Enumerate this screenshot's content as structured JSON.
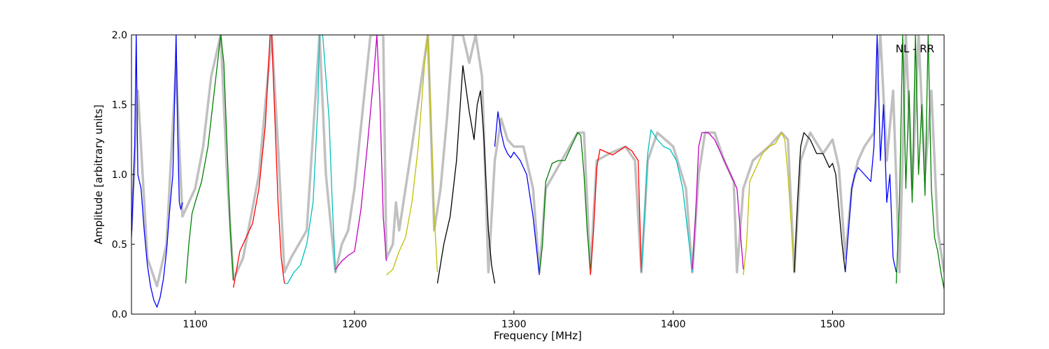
{
  "chart_data": {
    "type": "line",
    "title": "",
    "xlabel": "Frequency [MHz]",
    "ylabel": "Amplitude [arbitrary units]",
    "xlim": [
      1060,
      1570
    ],
    "ylim": [
      0,
      2.0
    ],
    "xticks": [
      1100,
      1200,
      1300,
      1400,
      1500
    ],
    "yticks": [
      0.0,
      0.5,
      1.0,
      1.5,
      2.0
    ],
    "xtick_labels": [
      "1100",
      "1200",
      "1300",
      "1400",
      "1500"
    ],
    "ytick_labels": [
      "0.0",
      "0.5",
      "1.0",
      "1.5",
      "2.0"
    ],
    "annotation": "NL - RR",
    "annotation_position": "top-right",
    "grid": false,
    "background_series": {
      "color": "#c0c0c0",
      "x": [
        1060,
        1064,
        1070,
        1076,
        1082,
        1088,
        1090,
        1092,
        1100,
        1105,
        1110,
        1116,
        1120,
        1124,
        1130,
        1140,
        1148,
        1152,
        1156,
        1160,
        1170,
        1178,
        1182,
        1188,
        1192,
        1196,
        1200,
        1210,
        1218,
        1220,
        1224,
        1226,
        1228,
        1236,
        1246,
        1250,
        1254,
        1258,
        1262,
        1268,
        1272,
        1276,
        1280,
        1284,
        1288,
        1292,
        1296,
        1300,
        1306,
        1312,
        1316,
        1320,
        1330,
        1340,
        1344,
        1348,
        1352,
        1360,
        1370,
        1376,
        1380,
        1384,
        1390,
        1400,
        1408,
        1412,
        1416,
        1420,
        1426,
        1432,
        1438,
        1440,
        1444,
        1450,
        1460,
        1468,
        1472,
        1476,
        1480,
        1486,
        1494,
        1500,
        1504,
        1508,
        1512,
        1516,
        1520,
        1526,
        1530,
        1534,
        1538,
        1542,
        1546,
        1550,
        1554,
        1558,
        1562,
        1566,
        1570
      ],
      "y": [
        0.6,
        1.6,
        0.4,
        0.2,
        0.5,
        1.8,
        1.2,
        0.7,
        0.9,
        1.2,
        1.7,
        2.0,
        1.0,
        0.25,
        0.4,
        1.0,
        2.0,
        1.2,
        0.3,
        0.4,
        0.6,
        2.0,
        1.0,
        0.3,
        0.5,
        0.6,
        0.9,
        2.0,
        2.0,
        0.4,
        0.5,
        0.8,
        0.6,
        1.2,
        2.0,
        0.6,
        0.9,
        1.4,
        2.0,
        2.0,
        1.8,
        2.0,
        1.7,
        0.3,
        1.1,
        1.4,
        1.25,
        1.2,
        1.2,
        0.9,
        0.3,
        0.9,
        1.1,
        1.3,
        1.3,
        0.3,
        1.1,
        1.15,
        1.2,
        1.1,
        0.3,
        1.1,
        1.3,
        1.2,
        0.9,
        0.3,
        1.0,
        1.3,
        1.3,
        1.1,
        0.95,
        0.3,
        0.9,
        1.1,
        1.2,
        1.3,
        1.25,
        0.3,
        1.1,
        1.3,
        1.15,
        1.25,
        1.05,
        0.4,
        0.9,
        1.1,
        1.2,
        1.3,
        2.0,
        1.1,
        1.6,
        0.3,
        2.0,
        0.9,
        2.0,
        1.0,
        1.6,
        0.6,
        0.3
      ]
    },
    "series": [
      {
        "color": "#0000ff",
        "x": [
          1060,
          1062,
          1063,
          1064,
          1066,
          1068,
          1070,
          1072,
          1074,
          1076,
          1078,
          1080,
          1082,
          1084,
          1086,
          1088,
          1089,
          1090,
          1091,
          1092
        ],
        "y": [
          0.55,
          1.2,
          2.0,
          1.0,
          0.9,
          0.6,
          0.35,
          0.2,
          0.1,
          0.05,
          0.12,
          0.25,
          0.45,
          0.75,
          1.0,
          2.0,
          1.3,
          0.8,
          0.75,
          0.8
        ]
      },
      {
        "color": "#008000",
        "x": [
          1094,
          1096,
          1098,
          1100,
          1104,
          1108,
          1112,
          1116,
          1118,
          1120,
          1122,
          1124
        ],
        "y": [
          0.22,
          0.5,
          0.72,
          0.8,
          0.95,
          1.2,
          1.6,
          2.0,
          1.8,
          1.2,
          0.6,
          0.24
        ]
      },
      {
        "color": "#ff0000",
        "x": [
          1124,
          1128,
          1132,
          1136,
          1140,
          1144,
          1147,
          1148,
          1150,
          1152,
          1154,
          1156
        ],
        "y": [
          0.19,
          0.45,
          0.55,
          0.65,
          0.9,
          1.35,
          2.0,
          2.0,
          1.4,
          0.8,
          0.4,
          0.22
        ]
      },
      {
        "color": "#00bfbf",
        "x": [
          1156,
          1158,
          1162,
          1166,
          1170,
          1174,
          1177,
          1178,
          1180,
          1184,
          1186,
          1188
        ],
        "y": [
          0.22,
          0.22,
          0.3,
          0.35,
          0.5,
          0.8,
          1.5,
          2.0,
          2.0,
          1.4,
          0.8,
          0.3
        ]
      },
      {
        "color": "#bf00bf",
        "x": [
          1188,
          1192,
          1196,
          1200,
          1204,
          1208,
          1212,
          1214,
          1216,
          1218,
          1220
        ],
        "y": [
          0.32,
          0.38,
          0.42,
          0.45,
          0.75,
          1.2,
          1.7,
          2.0,
          1.5,
          0.7,
          0.38
        ]
      },
      {
        "color": "#bfbf00",
        "x": [
          1220,
          1224,
          1228,
          1232,
          1236,
          1240,
          1244,
          1246,
          1248,
          1250,
          1252
        ],
        "y": [
          0.28,
          0.32,
          0.45,
          0.55,
          0.8,
          1.2,
          1.8,
          2.0,
          1.4,
          0.7,
          0.3
        ]
      },
      {
        "color": "#000000",
        "x": [
          1252,
          1256,
          1260,
          1264,
          1268,
          1272,
          1275,
          1277,
          1279,
          1281,
          1284,
          1286,
          1288
        ],
        "y": [
          0.22,
          0.5,
          0.7,
          1.1,
          1.78,
          1.45,
          1.25,
          1.5,
          1.6,
          1.3,
          0.6,
          0.35,
          0.22
        ]
      },
      {
        "color": "#0000ff",
        "x": [
          1288,
          1290,
          1292,
          1294,
          1296,
          1298,
          1300,
          1304,
          1308,
          1312,
          1316
        ],
        "y": [
          1.2,
          1.45,
          1.3,
          1.2,
          1.15,
          1.12,
          1.16,
          1.1,
          1.0,
          0.7,
          0.28
        ]
      },
      {
        "color": "#008000",
        "x": [
          1316,
          1318,
          1320,
          1324,
          1328,
          1332,
          1336,
          1340,
          1342,
          1344,
          1346,
          1348
        ],
        "y": [
          0.3,
          0.5,
          0.95,
          1.08,
          1.1,
          1.1,
          1.2,
          1.3,
          1.28,
          1.0,
          0.6,
          0.32
        ]
      },
      {
        "color": "#ff0000",
        "x": [
          1348,
          1350,
          1352,
          1354,
          1358,
          1362,
          1366,
          1370,
          1374,
          1378,
          1380
        ],
        "y": [
          0.28,
          0.6,
          1.05,
          1.18,
          1.16,
          1.14,
          1.17,
          1.2,
          1.17,
          1.1,
          0.3
        ]
      },
      {
        "color": "#00bfbf",
        "x": [
          1380,
          1382,
          1384,
          1386,
          1390,
          1394,
          1398,
          1402,
          1406,
          1410,
          1412
        ],
        "y": [
          0.3,
          0.7,
          1.15,
          1.32,
          1.25,
          1.2,
          1.18,
          1.1,
          0.9,
          0.5,
          0.3
        ]
      },
      {
        "color": "#bf00bf",
        "x": [
          1412,
          1414,
          1416,
          1418,
          1422,
          1426,
          1430,
          1434,
          1438,
          1440,
          1444
        ],
        "y": [
          0.32,
          0.7,
          1.2,
          1.3,
          1.3,
          1.25,
          1.15,
          1.05,
          0.95,
          0.9,
          0.32
        ]
      },
      {
        "color": "#bfbf00",
        "x": [
          1444,
          1446,
          1448,
          1452,
          1456,
          1460,
          1464,
          1468,
          1470,
          1472,
          1476
        ],
        "y": [
          0.28,
          0.5,
          0.95,
          1.05,
          1.15,
          1.2,
          1.22,
          1.3,
          1.25,
          1.0,
          0.3
        ]
      },
      {
        "color": "#000000",
        "x": [
          1476,
          1478,
          1480,
          1482,
          1486,
          1490,
          1494,
          1498,
          1500,
          1502,
          1506,
          1508
        ],
        "y": [
          0.3,
          0.8,
          1.2,
          1.3,
          1.25,
          1.15,
          1.15,
          1.05,
          1.08,
          1.0,
          0.5,
          0.3
        ]
      },
      {
        "color": "#0000ff",
        "x": [
          1508,
          1510,
          1512,
          1514,
          1516,
          1520,
          1524,
          1526,
          1528,
          1530,
          1532,
          1534,
          1536,
          1538,
          1540
        ],
        "y": [
          0.3,
          0.6,
          0.9,
          1.0,
          1.05,
          1.0,
          0.95,
          1.2,
          2.0,
          1.1,
          1.5,
          0.8,
          1.0,
          0.4,
          0.3
        ]
      },
      {
        "color": "#008000",
        "x": [
          1540,
          1542,
          1544,
          1546,
          1548,
          1550,
          1552,
          1554,
          1556,
          1558,
          1560,
          1562,
          1564,
          1566,
          1568,
          1570
        ],
        "y": [
          0.22,
          0.8,
          2.0,
          0.9,
          1.6,
          0.8,
          2.0,
          1.0,
          1.5,
          0.85,
          2.0,
          0.9,
          0.55,
          0.45,
          0.3,
          0.18
        ]
      }
    ]
  }
}
